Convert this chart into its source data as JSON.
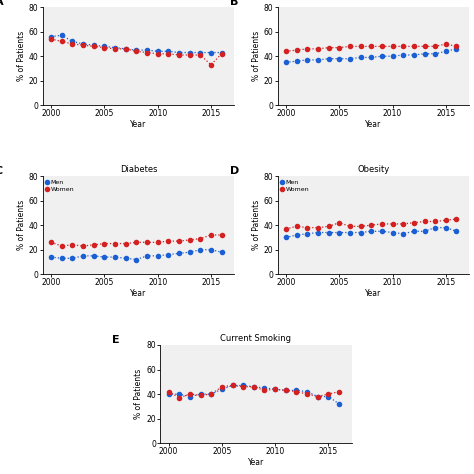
{
  "years": [
    2000,
    2001,
    2002,
    2003,
    2004,
    2005,
    2006,
    2007,
    2008,
    2009,
    2010,
    2011,
    2012,
    2013,
    2014,
    2015,
    2016
  ],
  "panel_A": {
    "title": "",
    "label": "A",
    "men": [
      56,
      57,
      52,
      50,
      49,
      48,
      47,
      46,
      45,
      45,
      44,
      44,
      43,
      43,
      43,
      43,
      43
    ],
    "women": [
      54,
      52,
      50,
      49,
      48,
      47,
      46,
      46,
      44,
      43,
      42,
      42,
      41,
      41,
      41,
      33,
      42
    ]
  },
  "panel_B": {
    "title": "",
    "label": "B",
    "men": [
      35,
      36,
      37,
      37,
      38,
      38,
      38,
      39,
      39,
      40,
      40,
      41,
      41,
      42,
      42,
      44,
      46
    ],
    "women": [
      44,
      45,
      46,
      46,
      47,
      47,
      48,
      48,
      48,
      48,
      48,
      48,
      48,
      48,
      48,
      50,
      48
    ]
  },
  "panel_C": {
    "title": "Diabetes",
    "label": "C",
    "men": [
      14,
      13,
      13,
      15,
      15,
      14,
      14,
      13,
      12,
      15,
      15,
      16,
      17,
      18,
      20,
      20,
      18
    ],
    "women": [
      26,
      23,
      24,
      23,
      24,
      25,
      25,
      25,
      26,
      26,
      26,
      27,
      27,
      28,
      29,
      32,
      32
    ]
  },
  "panel_D": {
    "title": "Obesity",
    "label": "D",
    "men": [
      30,
      32,
      33,
      34,
      34,
      34,
      34,
      34,
      35,
      35,
      34,
      33,
      35,
      35,
      38,
      38,
      35
    ],
    "women": [
      37,
      39,
      38,
      38,
      39,
      42,
      39,
      39,
      40,
      41,
      41,
      41,
      42,
      43,
      43,
      44,
      45
    ]
  },
  "panel_E": {
    "title": "Current Smoking",
    "label": "E",
    "men": [
      40,
      40,
      38,
      40,
      40,
      44,
      47,
      47,
      46,
      45,
      44,
      43,
      43,
      42,
      38,
      38,
      32
    ],
    "women": [
      42,
      37,
      40,
      39,
      40,
      46,
      47,
      46,
      46,
      43,
      44,
      43,
      42,
      40,
      38,
      40,
      42
    ]
  },
  "men_color": "#1a5fd4",
  "women_color": "#d42020",
  "ylim": [
    0,
    80
  ],
  "yticks": [
    0,
    20,
    40,
    60,
    80
  ],
  "xticks": [
    2000,
    2005,
    2010,
    2015
  ],
  "ylabel": "% of Patients",
  "xlabel": "Year",
  "bg_color": "#f0f0f0"
}
